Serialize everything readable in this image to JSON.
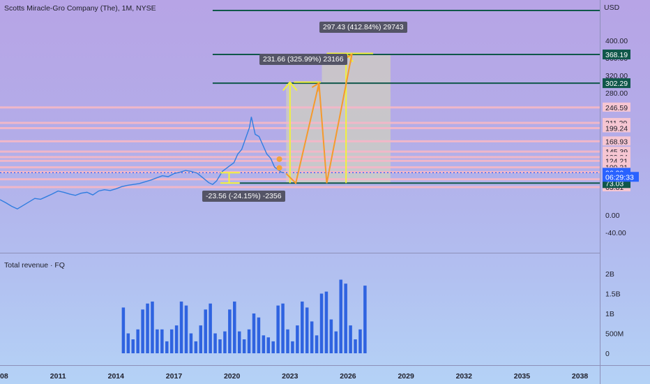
{
  "chart_data": {
    "type": "line",
    "title": "Scotts Miracle-Gro Company (The), 1M, NYSE",
    "currency": "USD",
    "price_axis": {
      "range": [
        -55,
        435
      ],
      "tick_labels": [
        "400.00",
        "360.00",
        "320.00",
        "280.00",
        "246.59",
        "211.29",
        "199.24",
        "168.93",
        "145.39",
        "132.84",
        "124.21",
        "109.31",
        "98.32",
        "81.85",
        "63.81",
        "0.00",
        "-40.00"
      ],
      "tick_values": [
        400,
        360,
        320,
        280,
        246.59,
        211.29,
        199.24,
        168.93,
        145.39,
        132.84,
        124.21,
        109.31,
        98.32,
        81.85,
        63.81,
        0,
        -40
      ]
    },
    "time_axis": {
      "range": [
        2008,
        2040
      ],
      "tick_labels": [
        "2008",
        "2011",
        "2014",
        "2017",
        "2020",
        "2023",
        "2026",
        "2029",
        "2032",
        "2035",
        "2038"
      ],
      "tick_values": [
        2008,
        2011,
        2014,
        2017,
        2020,
        2023,
        2026,
        2029,
        2032,
        2035,
        2038
      ]
    },
    "price_series": {
      "x": [
        2008.0,
        2008.3,
        2008.6,
        2008.9,
        2009.2,
        2009.5,
        2009.8,
        2010.1,
        2010.4,
        2010.7,
        2011.0,
        2011.3,
        2011.6,
        2011.9,
        2012.2,
        2012.5,
        2012.8,
        2013.1,
        2013.4,
        2013.7,
        2014.0,
        2014.3,
        2014.6,
        2014.9,
        2015.2,
        2015.5,
        2015.8,
        2016.1,
        2016.4,
        2016.7,
        2017.0,
        2017.3,
        2017.6,
        2017.9,
        2018.2,
        2018.5,
        2018.8,
        2019.0,
        2019.2,
        2019.5,
        2019.8,
        2020.1,
        2020.3,
        2020.5,
        2020.7,
        2020.9,
        2021.0,
        2021.2,
        2021.4,
        2021.6,
        2021.8,
        2022.0,
        2022.2,
        2022.4,
        2022.55,
        2022.7
      ],
      "y": [
        35,
        28,
        20,
        14,
        22,
        30,
        38,
        36,
        42,
        48,
        55,
        52,
        48,
        45,
        50,
        52,
        46,
        55,
        58,
        56,
        60,
        65,
        68,
        70,
        72,
        76,
        80,
        85,
        90,
        88,
        95,
        98,
        102,
        100,
        96,
        85,
        74,
        70,
        78,
        100,
        110,
        120,
        140,
        150,
        175,
        200,
        225,
        185,
        180,
        160,
        140,
        130,
        110,
        103,
        98,
        97
      ]
    },
    "horizontal_levels": {
      "teal": [
        435,
        368.19,
        302.29,
        73.03
      ],
      "pink": [
        246.59,
        211.29,
        199.24,
        168.93,
        145.39,
        132.84,
        124.21,
        109.31,
        98.32,
        81.85,
        63.81
      ]
    },
    "price_tags": [
      {
        "label": "368.19",
        "value": 368.19,
        "color": "#10574a",
        "text_color": "#ffffff"
      },
      {
        "label": "302.29",
        "value": 302.29,
        "color": "#10574a",
        "text_color": "#ffffff"
      },
      {
        "label": "73.03",
        "value": 73.03,
        "color": "#10574a",
        "text_color": "#ffffff"
      },
      {
        "label": "96.90",
        "value": 96.9,
        "color": "#2962ff",
        "text_color": "#ffffff"
      },
      {
        "label": "06:29:33",
        "value": 87.5,
        "color": "#2962ff",
        "text_color": "#ffffff"
      }
    ],
    "current_price": 96.9,
    "measurements": [
      {
        "label": "-23.56 (-24.15%) -2356",
        "x0": 2019.4,
        "x1": 2020.4,
        "y0": 97,
        "y1": 73.4
      },
      {
        "label": "231.66 (325.99%) 23166",
        "x0": 2023.2,
        "x1": 2024.5,
        "y0": 73.03,
        "y1": 304.7
      },
      {
        "label": "297.43 (412.84%) 29743",
        "x0": 2024.6,
        "x1": 2027.3,
        "y0": 73.03,
        "y1": 370.5
      }
    ],
    "projection_path": {
      "x": [
        2022.8,
        2023.3,
        2024.5,
        2024.9,
        2026.2
      ],
      "y": [
        95,
        73.03,
        302.29,
        73.03,
        368.19
      ]
    },
    "markers": [
      {
        "x": 2022.45,
        "y": 128
      },
      {
        "x": 2022.45,
        "y": 108
      }
    ],
    "revenue": {
      "title": "Total revenue · FQ",
      "y_tick_labels": [
        "2B",
        "1.5B",
        "1B",
        "500M",
        "0"
      ],
      "y_tick_values": [
        2000000000,
        1500000000,
        1000000000,
        500000000,
        0
      ],
      "quarters_start": 2014.3,
      "quarter_step": 0.25,
      "values": [
        1150000000.0,
        500000000.0,
        350000000.0,
        600000000.0,
        1100000000.0,
        1250000000.0,
        1300000000.0,
        600000000.0,
        600000000.0,
        300000000.0,
        600000000.0,
        700000000.0,
        1300000000.0,
        1200000000.0,
        500000000.0,
        300000000.0,
        700000000.0,
        1100000000.0,
        1250000000.0,
        500000000.0,
        350000000.0,
        550000000.0,
        1100000000.0,
        1300000000.0,
        550000000.0,
        350000000.0,
        600000000.0,
        1000000000.0,
        900000000.0,
        450000000.0,
        400000000.0,
        300000000.0,
        1200000000.0,
        1250000000.0,
        600000000.0,
        300000000.0,
        700000000.0,
        1300000000.0,
        1150000000.0,
        800000000.0,
        450000000.0,
        1500000000.0,
        1550000000.0,
        850000000.0,
        550000000.0,
        1850000000.0,
        1750000000.0,
        700000000.0,
        350000000.0,
        600000000.0,
        1700000000.0
      ]
    }
  }
}
